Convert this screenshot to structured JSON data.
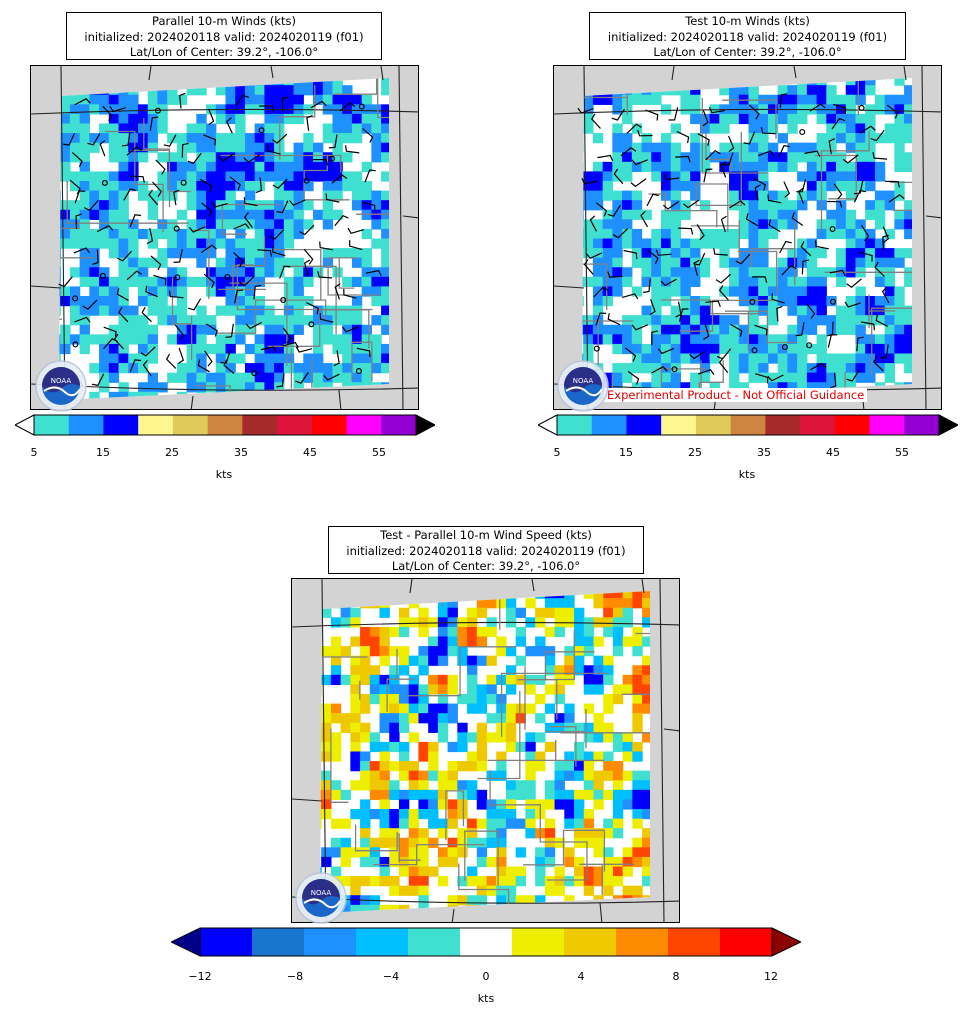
{
  "panels": [
    {
      "title": "Parallel 10-m Winds (kts)",
      "line2": "initialized: 2024020118 valid: 2024020119 (f01)",
      "line3": "Lat/Lon of Center: 39.2°, -106.0°"
    },
    {
      "title": "Test 10-m Winds (kts)",
      "line2": "initialized: 2024020118 valid: 2024020119 (f01)",
      "line3": "Lat/Lon of Center: 39.2°, -106.0°",
      "banner": "Experimental Product - Not Official Guidance"
    },
    {
      "title": "Test - Parallel 10-m Wind Speed (kts)",
      "line2": "initialized: 2024020118 valid: 2024020119 (f01)",
      "line3": "Lat/Lon of Center: 39.2°, -106.0°"
    }
  ],
  "wind_colorbar": {
    "unit": "kts",
    "ticks": [
      "5",
      "15",
      "25",
      "35",
      "45",
      "55"
    ],
    "bounds": [
      5,
      10,
      15,
      20,
      25,
      30,
      35,
      40,
      45,
      50,
      55,
      60
    ],
    "colors": [
      "#40e0d0",
      "#1e90ff",
      "#0000ff",
      "#fff68f",
      "#e0cb5a",
      "#cd853f",
      "#a52a2a",
      "#dc143c",
      "#ff0000",
      "#ff00ff",
      "#9400d3"
    ],
    "under_color": "#ffffff",
    "over_color": "#000000"
  },
  "diff_colorbar": {
    "unit": "kts",
    "ticks": [
      "−12",
      "−8",
      "−4",
      "0",
      "4",
      "8",
      "12"
    ],
    "bounds": [
      -12,
      -10,
      -8,
      -6,
      -4,
      -2,
      2,
      4,
      6,
      8,
      10,
      12
    ],
    "colors": [
      "#0000ff",
      "#1874cd",
      "#1e90ff",
      "#00bfff",
      "#40e0d0",
      "#ffffff",
      "#eeee00",
      "#eec900",
      "#ff8c00",
      "#ff4500",
      "#ff0000"
    ],
    "under_color": "#00008b",
    "over_color": "#8b0000"
  },
  "logo_text": "NOAA"
}
